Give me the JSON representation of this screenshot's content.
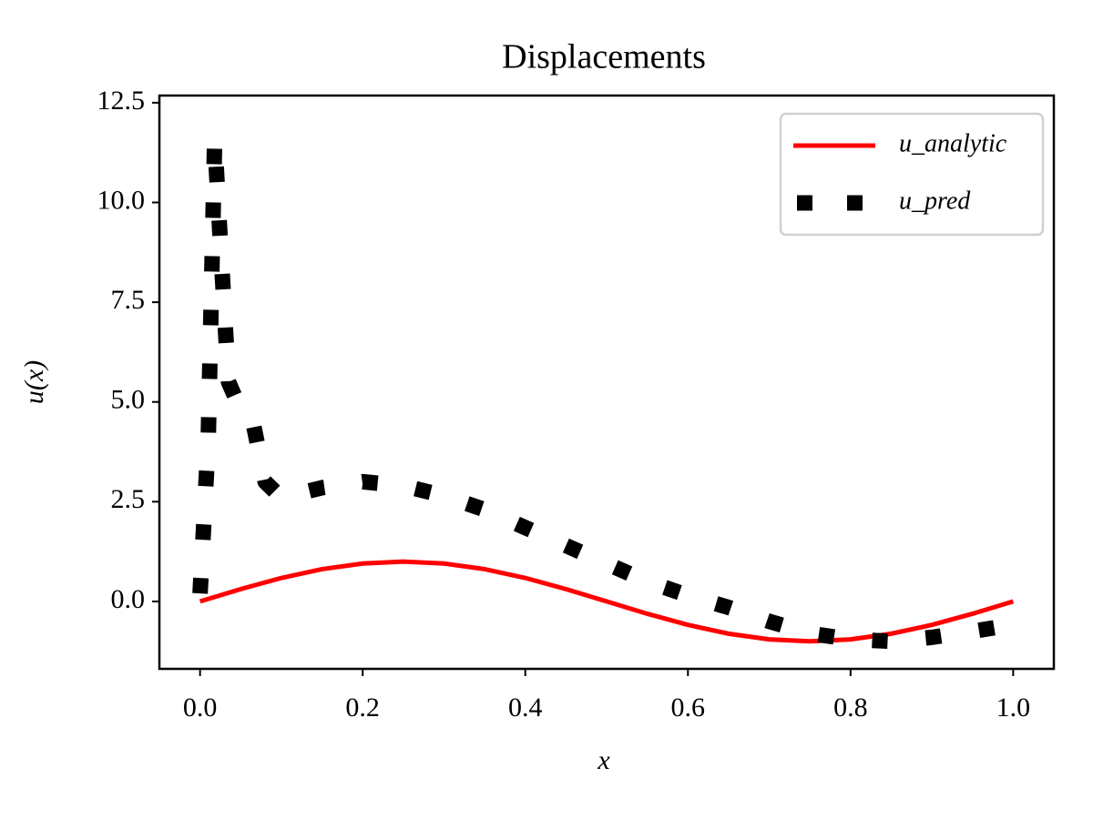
{
  "chart_data": {
    "type": "line",
    "title": "Displacements",
    "x_label": "x",
    "y_label": "u(x)",
    "series": [
      {
        "name": "u_analytic",
        "color": "#ff0000",
        "style": "solid",
        "x": [
          0,
          0.05,
          0.1,
          0.15,
          0.2,
          0.25,
          0.3,
          0.35,
          0.4,
          0.45,
          0.5,
          0.55,
          0.6,
          0.65,
          0.7,
          0.75,
          0.8,
          0.85,
          0.9,
          0.95,
          1.0
        ],
        "values": [
          0,
          0.309,
          0.588,
          0.809,
          0.951,
          1.0,
          0.951,
          0.809,
          0.588,
          0.309,
          0,
          -0.309,
          -0.588,
          -0.809,
          -0.951,
          -1.0,
          -0.951,
          -0.809,
          -0.588,
          -0.309,
          0
        ]
      },
      {
        "name": "u_pred",
        "color": "#000000",
        "style": "dotted",
        "x": [
          0,
          0.01,
          0.018,
          0.025,
          0.035,
          0.05,
          0.065,
          0.08,
          0.1,
          0.15,
          0.2,
          0.25,
          0.3,
          0.35,
          0.4,
          0.45,
          0.5,
          0.55,
          0.6,
          0.65,
          0.7,
          0.75,
          0.8,
          0.85,
          0.9,
          0.95,
          0.98
        ],
        "values": [
          0.2,
          4.0,
          11.6,
          9.0,
          5.5,
          4.8,
          4.5,
          3.0,
          2.6,
          2.85,
          3.0,
          2.9,
          2.65,
          2.3,
          1.85,
          1.4,
          0.95,
          0.5,
          0.15,
          -0.15,
          -0.5,
          -0.8,
          -0.95,
          -1.0,
          -0.9,
          -0.75,
          -0.65
        ]
      }
    ],
    "xlim": [
      -0.05,
      1.05
    ],
    "ylim": [
      -1.69,
      12.68
    ],
    "xticks": [
      {
        "value": 0,
        "label": "0.0"
      },
      0.2,
      0.4,
      0.6,
      0.8,
      {
        "value": 1,
        "label": "1.0"
      }
    ],
    "yticks": [
      {
        "value": 0,
        "label": "0.0"
      },
      2.5,
      {
        "value": 5,
        "label": "5.0"
      },
      7.5,
      {
        "value": 10,
        "label": "10.0"
      },
      12.5
    ],
    "legend": "upper right",
    "grid": false
  }
}
